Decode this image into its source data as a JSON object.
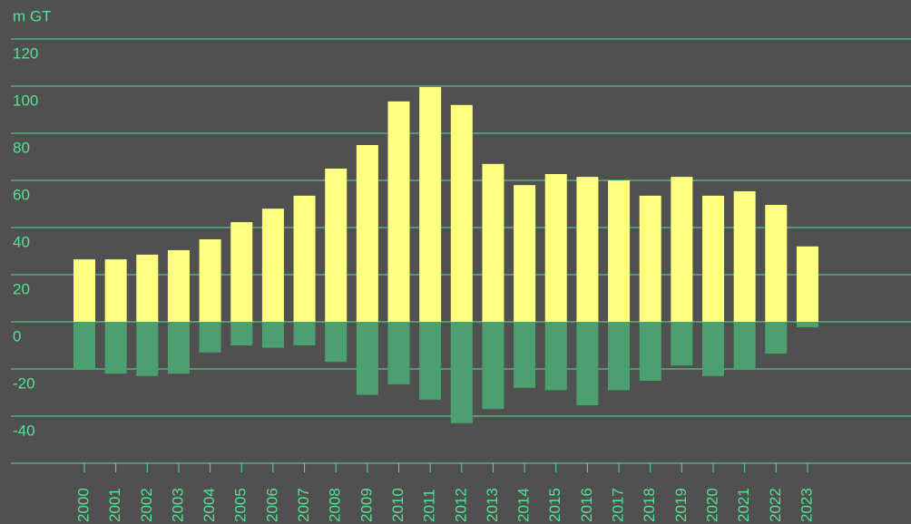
{
  "chart_data": {
    "type": "bar",
    "y_label": "m GT",
    "categories": [
      "2000",
      "2001",
      "2002",
      "2003",
      "2004",
      "2005",
      "2006",
      "2007",
      "2008",
      "2009",
      "2010",
      "2011",
      "2012",
      "2013",
      "2014",
      "2015",
      "2016",
      "2017",
      "2018",
      "2019",
      "2020",
      "2021",
      "2022",
      "2023"
    ],
    "series": [
      {
        "color": "#ffff80",
        "values": [
          26.5,
          26.5,
          28.5,
          30.4,
          35,
          42.3,
          48,
          53.5,
          65,
          75,
          93.5,
          99.6,
          92,
          67,
          58,
          62.7,
          61.5,
          60,
          53.5,
          61.5,
          53.5,
          55.4,
          49.6,
          32
        ]
      },
      {
        "color": "#4ca070",
        "values": [
          -20,
          -22,
          -23,
          -22,
          -13,
          -10,
          -11,
          -10,
          -17,
          -31,
          -26.5,
          -33,
          -43,
          -37,
          -28,
          -29,
          -35.4,
          -29,
          -25,
          -18.5,
          -23,
          -20,
          -13.5,
          -2.3
        ]
      }
    ],
    "ylim": [
      -60,
      120
    ],
    "yticks": [
      -40,
      -20,
      0,
      20,
      40,
      60,
      80,
      100,
      120
    ],
    "grid": true,
    "text_color": "#52e394"
  }
}
